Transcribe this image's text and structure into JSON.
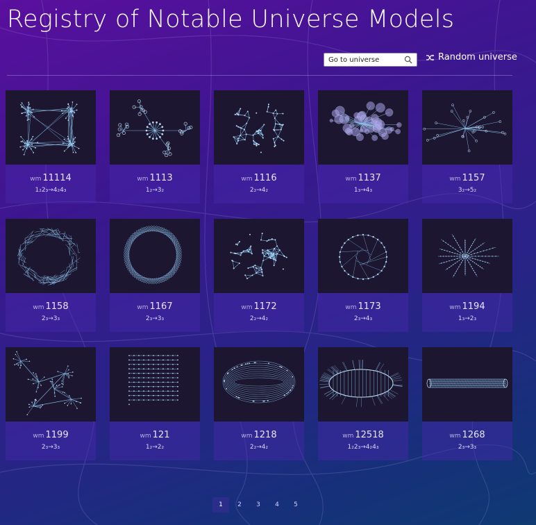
{
  "header": {
    "title": "Registry of Notable Universe Models",
    "search_placeholder": "Go to universe",
    "random_label": "Random universe"
  },
  "models": [
    {
      "prefix": "wm",
      "id": "11114",
      "rule": "1₂2₃→4₂4₃",
      "thumb": "dense-web"
    },
    {
      "prefix": "wm",
      "id": "1113",
      "rule": "1₂→3₂",
      "thumb": "branch-tree"
    },
    {
      "prefix": "wm",
      "id": "1116",
      "rule": "2₂→4₂",
      "thumb": "mesh-blob"
    },
    {
      "prefix": "wm",
      "id": "1137",
      "rule": "1₃→4₃",
      "thumb": "bubble-cluster"
    },
    {
      "prefix": "wm",
      "id": "1157",
      "rule": "3₂→5₂",
      "thumb": "starburst-tree"
    },
    {
      "prefix": "wm",
      "id": "1158",
      "rule": "2₃→3₃",
      "thumb": "dense-ring"
    },
    {
      "prefix": "wm",
      "id": "1167",
      "rule": "2₃→3₃",
      "thumb": "torus-ring"
    },
    {
      "prefix": "wm",
      "id": "1172",
      "rule": "2₂→4₂",
      "thumb": "mesh-blob"
    },
    {
      "prefix": "wm",
      "id": "1173",
      "rule": "2₃→4₃",
      "thumb": "flower-ring"
    },
    {
      "prefix": "wm",
      "id": "1194",
      "rule": "1₃→2₃",
      "thumb": "star"
    },
    {
      "prefix": "wm",
      "id": "1199",
      "rule": "2₃→3₃",
      "thumb": "fractal-branches"
    },
    {
      "prefix": "wm",
      "id": "121",
      "rule": "1₂→2₂",
      "thumb": "chains"
    },
    {
      "prefix": "wm",
      "id": "1218",
      "rule": "2₂→4₂",
      "thumb": "mesh-sphere"
    },
    {
      "prefix": "wm",
      "id": "12518",
      "rule": "1₂2₃→4₂4₃",
      "thumb": "hairy-cylinder"
    },
    {
      "prefix": "wm",
      "id": "1268",
      "rule": "2₃→3₃",
      "thumb": "tube"
    }
  ],
  "pagination": {
    "pages": [
      "1",
      "2",
      "3",
      "4",
      "5"
    ],
    "current": "1"
  },
  "colors": {
    "thumb_bg": "#1c1630",
    "graph_stroke": "#8fc8f0",
    "graph_node": "#c9e6ff"
  }
}
